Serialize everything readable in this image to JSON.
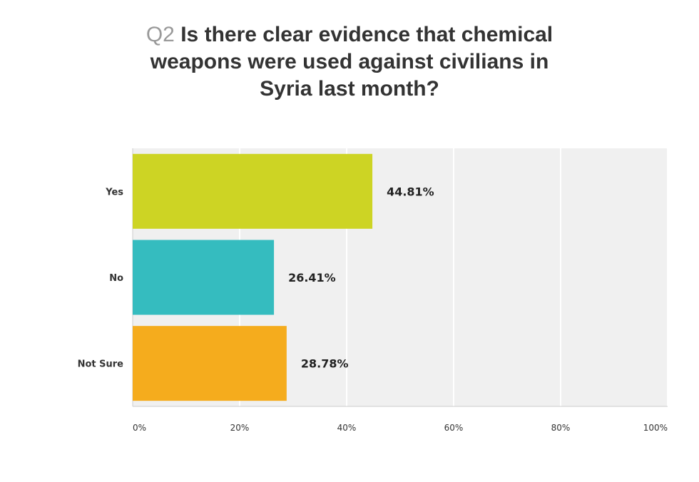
{
  "question_number": "Q2",
  "question_text": "Is there clear evidence that chemical weapons were used against civilians in Syria last month?",
  "colors": {
    "yes": "#cdd424",
    "no": "#35bcbf",
    "not_sure": "#f5ac1d",
    "plot_bg": "#f0f0f0",
    "grid": "#ffffff"
  },
  "chart_data": {
    "type": "bar",
    "orientation": "horizontal",
    "title": "Q2 Is there clear evidence that chemical weapons were used against civilians in Syria last month?",
    "categories": [
      "Yes",
      "No",
      "Not Sure"
    ],
    "values": [
      44.81,
      26.41,
      28.78
    ],
    "value_labels": [
      "44.81%",
      "26.41%",
      "28.78%"
    ],
    "x_ticks": [
      "0%",
      "20%",
      "40%",
      "60%",
      "80%",
      "100%"
    ],
    "xlim": [
      0,
      100
    ],
    "grid": true,
    "legend": "none"
  }
}
